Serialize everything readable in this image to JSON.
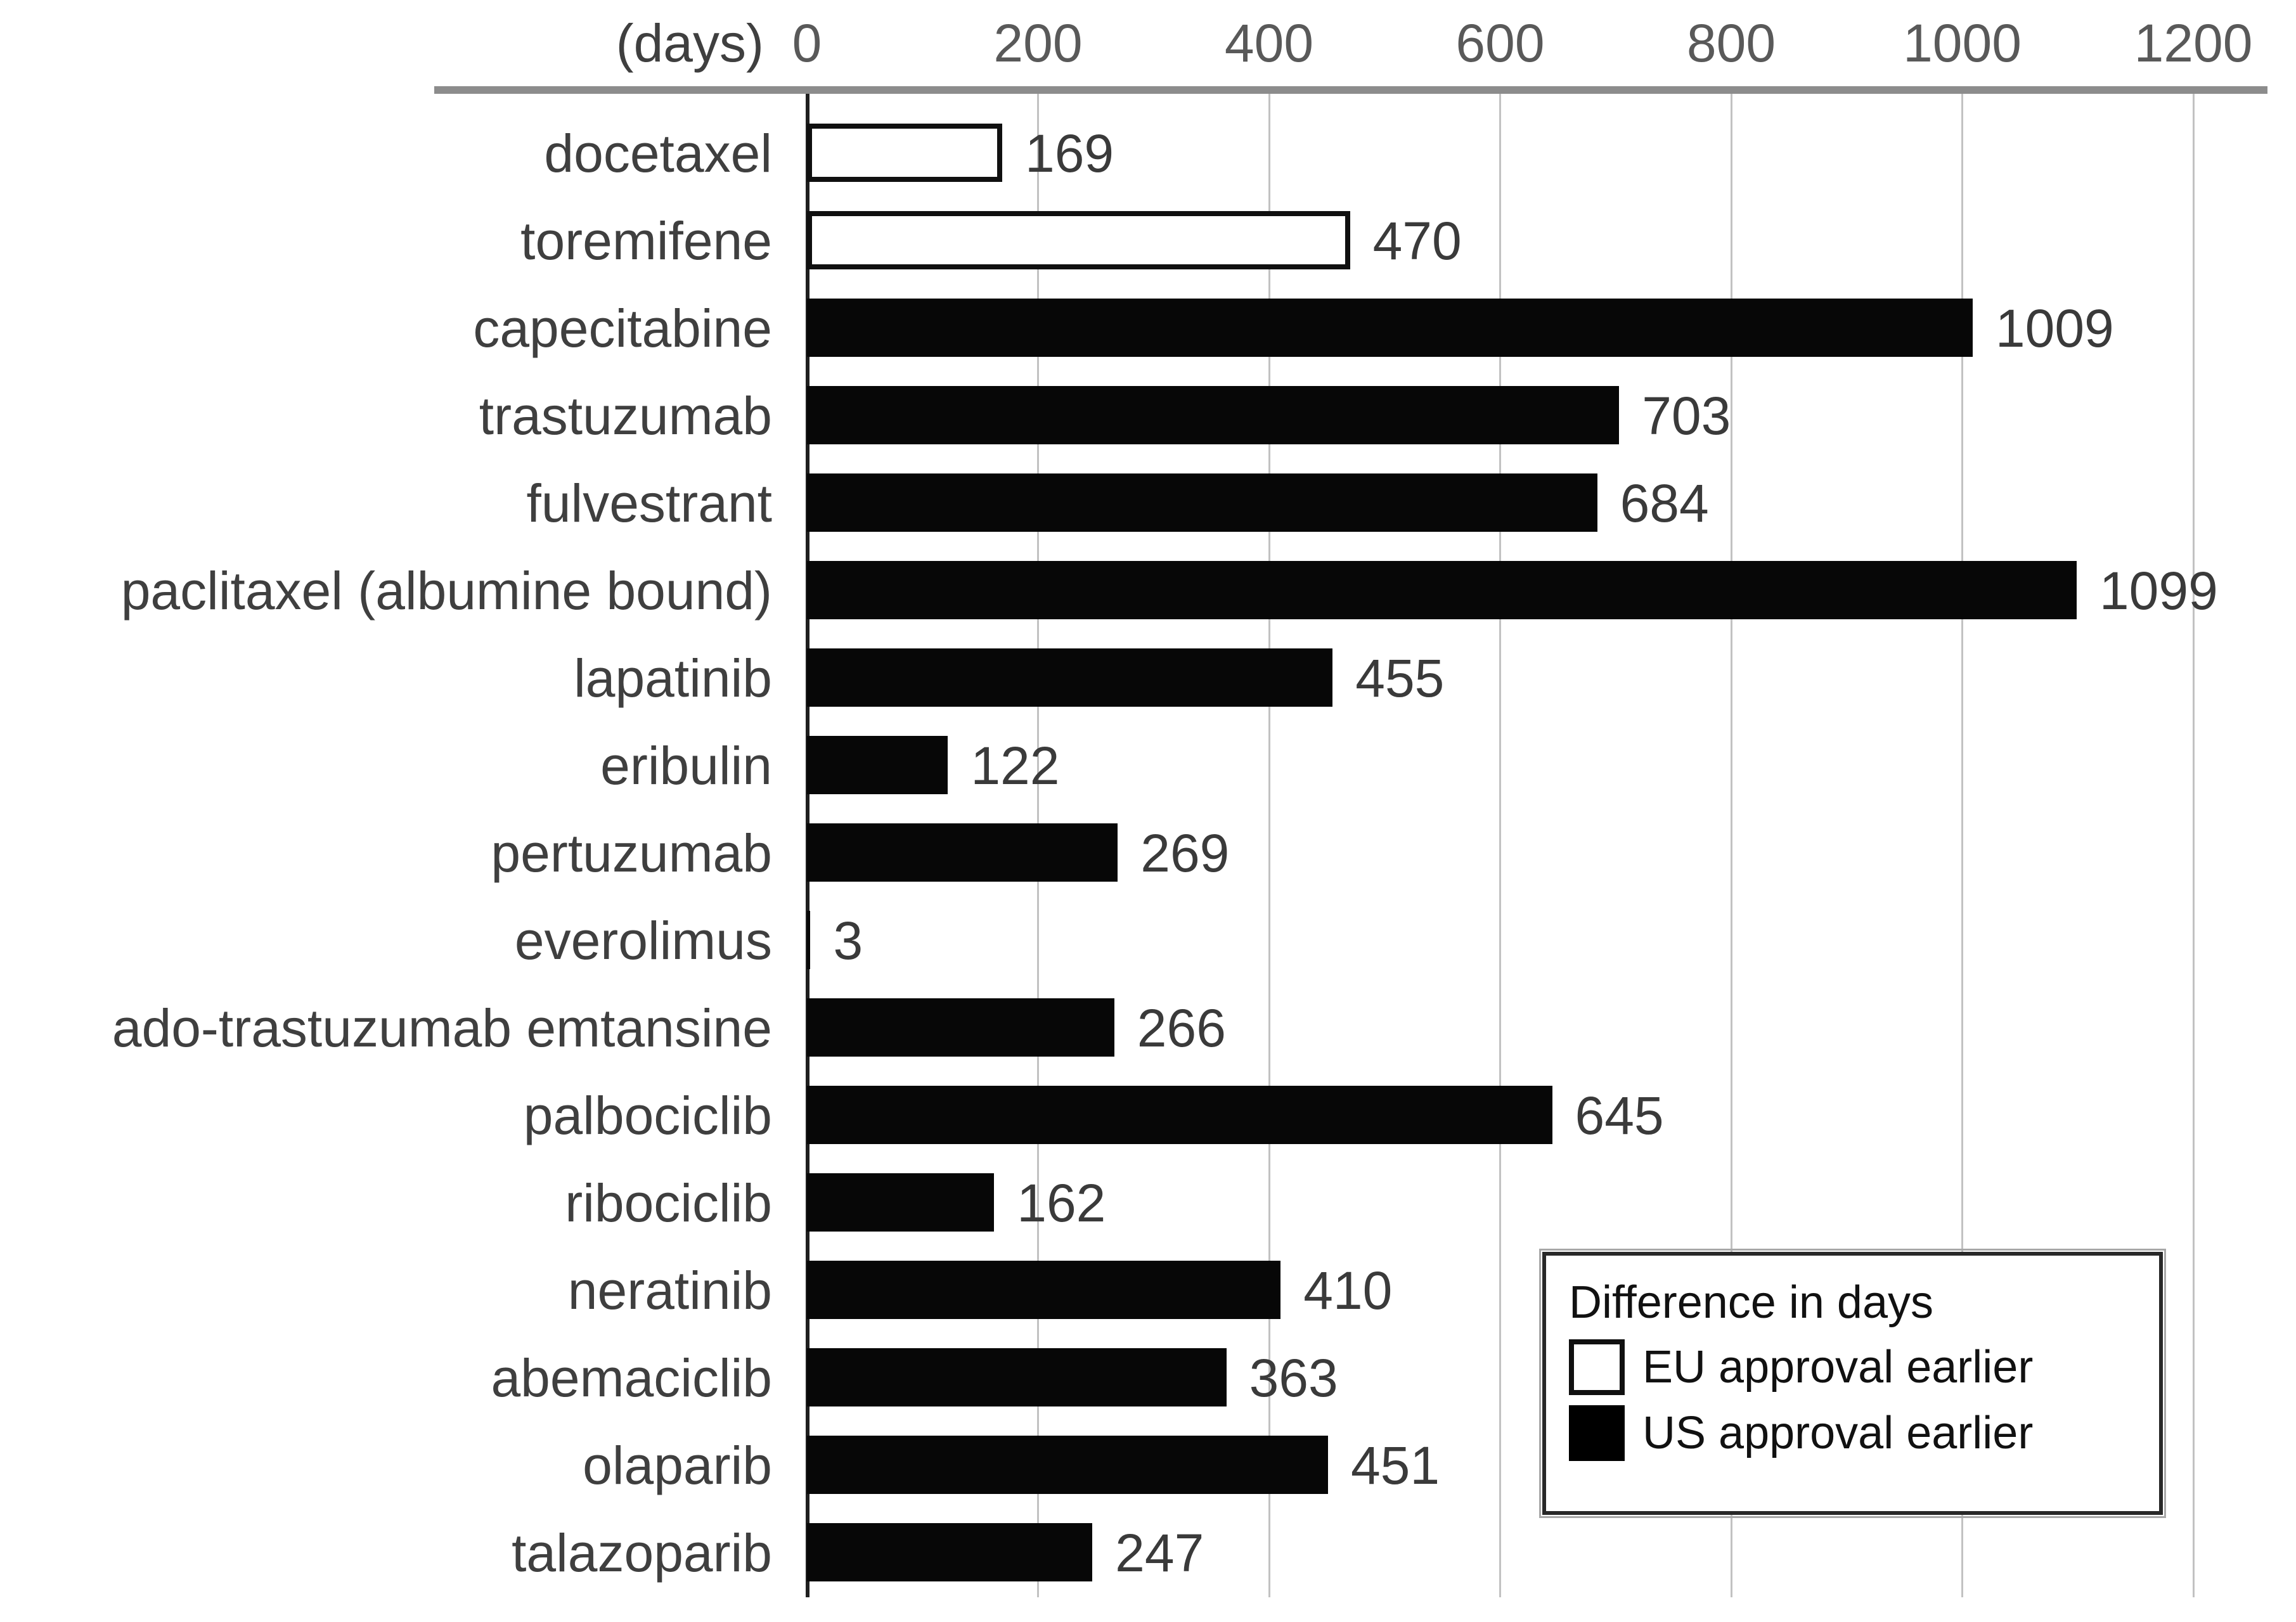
{
  "chart_data": {
    "type": "bar",
    "orientation": "horizontal",
    "title": "",
    "xlabel": "(days)",
    "ylabel": "",
    "axis": {
      "min": 0,
      "max": 1200,
      "tick_interval": 200,
      "ticks": [
        0,
        200,
        400,
        600,
        800,
        1000,
        1200
      ],
      "grid": "vertical-light-gray"
    },
    "categories": [
      "docetaxel",
      "toremifene",
      "capecitabine",
      "trastuzumab",
      "fulvestrant",
      "paclitaxel (albumine bound)",
      "lapatinib",
      "eribulin",
      "pertuzumab",
      "everolimus",
      "ado-trastuzumab emtansine",
      "palbociclib",
      "ribociclib",
      "neratinib",
      "abemaciclib",
      "olaparib",
      "talazoparib"
    ],
    "values": [
      169,
      470,
      1009,
      703,
      684,
      1099,
      455,
      122,
      269,
      3,
      266,
      645,
      162,
      410,
      363,
      451,
      247
    ],
    "value_labels": [
      "169",
      "470",
      "1009",
      "703",
      "684",
      "1099",
      "455",
      "122",
      "269",
      "3",
      "266",
      "645",
      "162",
      "410",
      "363",
      "451",
      "247"
    ],
    "bar_series": [
      "eu",
      "eu",
      "us",
      "us",
      "us",
      "us",
      "us",
      "us",
      "us",
      "us",
      "us",
      "us",
      "us",
      "us",
      "us",
      "us",
      "us"
    ],
    "legend": {
      "title": "Difference in days",
      "position": "bottom-right",
      "entries": [
        {
          "key": "eu",
          "label": "EU approval earlier",
          "fill": "#ffffff",
          "border": "#000000"
        },
        {
          "key": "us",
          "label": "US approval earlier",
          "fill": "#000000",
          "border": "#000000"
        }
      ]
    },
    "colors": {
      "us_bar": "#000000",
      "eu_bar_fill": "#ffffff",
      "eu_bar_border": "#000000",
      "gridline": "#c2c2c2",
      "axis_line": "#8c8c8c",
      "label_text": "#3f3f3f",
      "tick_text": "#595959"
    }
  }
}
